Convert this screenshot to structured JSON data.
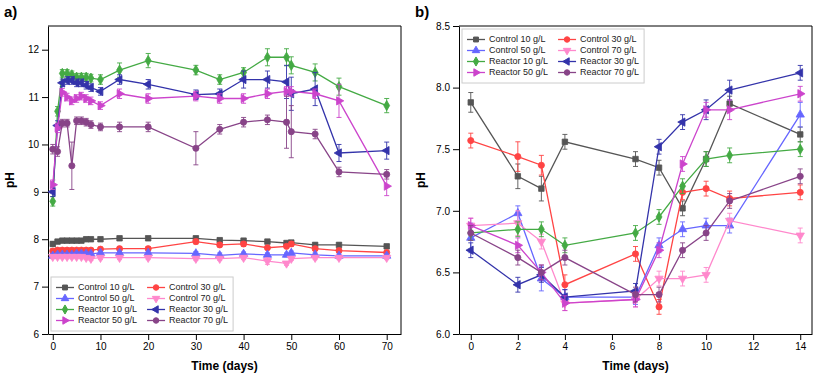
{
  "chart_data": [
    {
      "type": "line",
      "title": "a)",
      "x_label": "Time (days)",
      "y_label": "pH",
      "xlim": [
        -1,
        73
      ],
      "ylim": [
        6,
        12.5
      ],
      "xticks": [
        0,
        10,
        20,
        30,
        40,
        50,
        60,
        70
      ],
      "yticks": [
        6,
        7,
        8,
        9,
        10,
        11,
        12
      ],
      "grid": false,
      "legend": "lower left",
      "x": [
        0,
        1,
        2,
        3,
        4,
        5,
        6,
        7,
        8,
        10,
        14,
        20,
        30,
        35,
        40,
        45,
        49,
        50,
        55,
        60,
        70
      ],
      "series": [
        {
          "name": "Control 10 g/L",
          "color": "#555555",
          "marker": "square",
          "values": [
            7.9,
            7.95,
            7.97,
            7.97,
            7.97,
            7.97,
            7.97,
            8.0,
            8.0,
            8.0,
            8.02,
            8.02,
            8.02,
            7.98,
            7.97,
            7.95,
            7.92,
            7.93,
            7.88,
            7.88,
            7.85
          ],
          "errors": [
            0.05,
            0.04,
            0.04,
            0.04,
            0.04,
            0.04,
            0.04,
            0.04,
            0.04,
            0.04,
            0.04,
            0.04,
            0.04,
            0.04,
            0.04,
            0.04,
            0.04,
            0.04,
            0.04,
            0.04,
            0.04
          ]
        },
        {
          "name": "Control 30 g/L",
          "color": "#ff4444",
          "marker": "circle",
          "values": [
            7.75,
            7.77,
            7.77,
            7.77,
            7.77,
            7.77,
            7.77,
            7.77,
            7.77,
            7.79,
            7.8,
            7.8,
            7.95,
            7.88,
            7.9,
            7.82,
            7.85,
            7.9,
            7.8,
            7.76,
            7.72
          ],
          "errors": [
            0.05,
            0.04,
            0.04,
            0.04,
            0.04,
            0.04,
            0.04,
            0.04,
            0.04,
            0.04,
            0.04,
            0.04,
            0.05,
            0.04,
            0.05,
            0.04,
            0.04,
            0.05,
            0.04,
            0.04,
            0.04
          ]
        },
        {
          "name": "Control 50 g/L",
          "color": "#6666ff",
          "marker": "triangle-up",
          "values": [
            7.65,
            7.67,
            7.67,
            7.67,
            7.67,
            7.69,
            7.69,
            7.69,
            7.69,
            7.71,
            7.71,
            7.71,
            7.7,
            7.66,
            7.69,
            7.67,
            7.67,
            7.71,
            7.67,
            7.65,
            7.65
          ],
          "errors": [
            0.05,
            0.04,
            0.04,
            0.04,
            0.04,
            0.04,
            0.04,
            0.04,
            0.04,
            0.04,
            0.04,
            0.04,
            0.04,
            0.05,
            0.04,
            0.04,
            0.04,
            0.04,
            0.04,
            0.04,
            0.04
          ]
        },
        {
          "name": "Control 70 g/L",
          "color": "#ff88cc",
          "marker": "triangle-down",
          "values": [
            7.63,
            7.63,
            7.63,
            7.63,
            7.63,
            7.63,
            7.63,
            7.61,
            7.59,
            7.61,
            7.61,
            7.61,
            7.59,
            7.59,
            7.61,
            7.54,
            7.49,
            7.59,
            7.61,
            7.61,
            7.61
          ],
          "errors": [
            0.04,
            0.04,
            0.04,
            0.04,
            0.04,
            0.04,
            0.04,
            0.04,
            0.04,
            0.04,
            0.04,
            0.04,
            0.04,
            0.04,
            0.04,
            0.07,
            0.04,
            0.04,
            0.04,
            0.04,
            0.04
          ]
        },
        {
          "name": "Reactor 10 g/L",
          "color": "#44aa44",
          "marker": "diamond",
          "values": [
            8.8,
            10.7,
            11.5,
            11.5,
            11.47,
            11.42,
            11.42,
            11.42,
            11.4,
            11.37,
            11.57,
            11.77,
            11.57,
            11.37,
            11.52,
            11.84,
            11.84,
            11.67,
            11.52,
            11.22,
            10.82
          ],
          "errors": [
            0.1,
            0.1,
            0.08,
            0.08,
            0.08,
            0.08,
            0.08,
            0.08,
            0.08,
            0.1,
            0.15,
            0.15,
            0.1,
            0.1,
            0.1,
            0.18,
            0.18,
            0.18,
            0.18,
            0.18,
            0.15
          ]
        },
        {
          "name": "Reactor 30 g/L",
          "color": "#3333aa",
          "marker": "triangle-left",
          "values": [
            9.0,
            10.4,
            11.3,
            11.35,
            11.35,
            11.3,
            11.3,
            11.25,
            11.2,
            11.12,
            11.37,
            11.27,
            11.05,
            11.07,
            11.37,
            11.37,
            11.32,
            11.07,
            11.17,
            9.82,
            9.87
          ],
          "errors": [
            0.1,
            0.1,
            0.08,
            0.08,
            0.08,
            0.08,
            0.08,
            0.08,
            0.08,
            0.08,
            0.1,
            0.1,
            0.1,
            0.1,
            0.18,
            0.18,
            0.35,
            0.35,
            0.35,
            0.18,
            0.18
          ]
        },
        {
          "name": "Reactor 50 g/L",
          "color": "#cc44cc",
          "marker": "triangle-right",
          "values": [
            9.15,
            10.35,
            11.1,
            11.0,
            10.92,
            10.97,
            11.02,
            10.97,
            10.92,
            10.82,
            11.07,
            10.97,
            11.02,
            10.97,
            10.97,
            11.07,
            11.12,
            11.12,
            11.07,
            10.92,
            9.12
          ],
          "errors": [
            0.1,
            0.1,
            0.08,
            0.08,
            0.08,
            0.08,
            0.08,
            0.08,
            0.08,
            0.08,
            0.1,
            0.1,
            0.1,
            0.1,
            0.1,
            0.1,
            0.1,
            0.1,
            0.1,
            0.35,
            0.2
          ]
        },
        {
          "name": "Reactor 70 g/L",
          "color": "#884488",
          "marker": "circle",
          "values": [
            9.9,
            9.85,
            10.45,
            10.45,
            9.55,
            10.5,
            10.5,
            10.47,
            10.42,
            10.37,
            10.37,
            10.37,
            9.92,
            10.32,
            10.47,
            10.52,
            10.47,
            10.27,
            10.22,
            9.42,
            9.37
          ],
          "errors": [
            0.1,
            0.1,
            0.08,
            0.08,
            0.5,
            0.08,
            0.08,
            0.08,
            0.08,
            0.08,
            0.1,
            0.1,
            0.35,
            0.1,
            0.1,
            0.1,
            0.55,
            0.55,
            0.1,
            0.1,
            0.1
          ]
        }
      ]
    },
    {
      "type": "line",
      "title": "b)",
      "x_label": "Time (days)",
      "y_label": "pH",
      "xlim": [
        -0.5,
        14.5
      ],
      "ylim": [
        6.0,
        8.5
      ],
      "xticks": [
        0,
        2,
        4,
        6,
        8,
        10,
        12,
        14
      ],
      "yticks": [
        {
          "value": 6.0,
          "label": "6.0"
        },
        6.5,
        {
          "value": 7.0,
          "label": "7.0"
        },
        7.5,
        {
          "value": 8.0,
          "label": "8.0"
        },
        8.5
      ],
      "grid": false,
      "legend": "upper left",
      "x": [
        0,
        2,
        3,
        4,
        7,
        8,
        9,
        10,
        11,
        14
      ],
      "series": [
        {
          "name": "Control 10 g/L",
          "color": "#555555",
          "marker": "square",
          "values": [
            7.88,
            7.28,
            7.18,
            7.56,
            7.42,
            7.35,
            7.02,
            7.42,
            7.87,
            7.62
          ],
          "errors": [
            0.08,
            0.1,
            0.1,
            0.06,
            0.06,
            0.06,
            0.06,
            0.06,
            0.06,
            0.06
          ]
        },
        {
          "name": "Control 30 g/L",
          "color": "#ff4444",
          "marker": "circle",
          "values": [
            7.57,
            7.44,
            7.37,
            6.4,
            6.65,
            6.22,
            7.15,
            7.18,
            7.1,
            7.15
          ],
          "errors": [
            0.06,
            0.12,
            0.08,
            0.08,
            0.06,
            0.06,
            0.06,
            0.06,
            0.06,
            0.06
          ]
        },
        {
          "name": "Control 50 g/L",
          "color": "#6666ff",
          "marker": "triangle-up",
          "values": [
            6.78,
            6.98,
            6.45,
            6.3,
            6.3,
            6.72,
            6.85,
            6.88,
            6.88,
            7.78
          ],
          "errors": [
            0.12,
            0.06,
            0.1,
            0.06,
            0.06,
            0.06,
            0.06,
            0.06,
            0.06,
            0.1
          ]
        },
        {
          "name": "Control 70 g/L",
          "color": "#ff88cc",
          "marker": "triangle-down",
          "values": [
            6.88,
            6.9,
            6.75,
            6.25,
            6.28,
            6.45,
            6.45,
            6.48,
            6.92,
            6.8
          ],
          "errors": [
            0.06,
            0.1,
            0.06,
            0.06,
            0.06,
            0.06,
            0.06,
            0.06,
            0.06,
            0.06
          ]
        },
        {
          "name": "Reactor 10 g/L",
          "color": "#44aa44",
          "marker": "diamond",
          "values": [
            6.82,
            6.85,
            6.85,
            6.72,
            6.82,
            6.95,
            7.2,
            7.42,
            7.45,
            7.5
          ],
          "errors": [
            0.06,
            0.06,
            0.06,
            0.06,
            0.06,
            0.06,
            0.06,
            0.06,
            0.06,
            0.06
          ]
        },
        {
          "name": "Reactor 30 g/L",
          "color": "#3333aa",
          "marker": "triangle-left",
          "values": [
            6.68,
            6.4,
            6.48,
            6.3,
            6.35,
            7.52,
            7.72,
            7.82,
            7.98,
            8.12
          ],
          "errors": [
            0.06,
            0.06,
            0.06,
            0.06,
            0.06,
            0.06,
            0.06,
            0.08,
            0.08,
            0.06
          ]
        },
        {
          "name": "Reactor 50 g/L",
          "color": "#cc44cc",
          "marker": "triangle-right",
          "values": [
            6.88,
            6.72,
            6.5,
            6.25,
            6.28,
            6.68,
            7.38,
            7.82,
            7.82,
            7.95
          ],
          "errors": [
            0.06,
            0.06,
            0.06,
            0.06,
            0.06,
            0.06,
            0.06,
            0.06,
            0.08,
            0.06
          ]
        },
        {
          "name": "Reactor 70 g/L",
          "color": "#884488",
          "marker": "circle",
          "values": [
            6.82,
            6.62,
            6.5,
            6.62,
            6.32,
            6.32,
            6.68,
            6.82,
            7.08,
            7.28
          ],
          "errors": [
            0.06,
            0.06,
            0.06,
            0.06,
            0.06,
            0.06,
            0.06,
            0.06,
            0.06,
            0.06
          ]
        }
      ]
    }
  ]
}
